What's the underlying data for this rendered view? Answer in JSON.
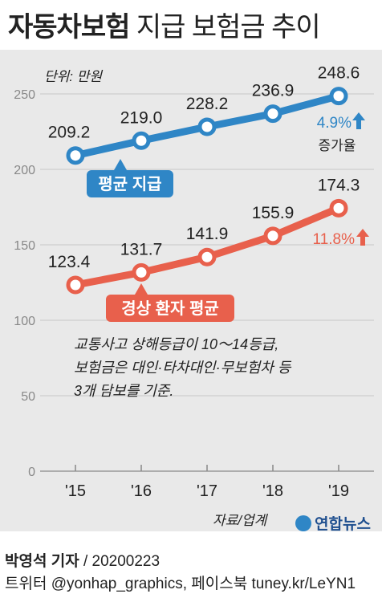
{
  "header": {
    "title_bold": "자동차보험",
    "title_rest": "지급 보험금 추이"
  },
  "unit_label": "단위: 만원",
  "chart_data": {
    "type": "line",
    "categories": [
      "'15",
      "'16",
      "'17",
      "'18",
      "'19"
    ],
    "ylim": [
      0,
      250
    ],
    "yticks": [
      "0",
      "50",
      "100",
      "150",
      "200",
      "250"
    ],
    "grid": true,
    "series": [
      {
        "name": "평균 지급",
        "color": "#2f86c6",
        "values": [
          209.2,
          219.0,
          228.2,
          236.9,
          248.6
        ],
        "labels": [
          "209.2",
          "219.0",
          "228.2",
          "236.9",
          "248.6"
        ],
        "growth": "4.9%"
      },
      {
        "name": "경상 환자 평균",
        "color": "#e8604c",
        "values": [
          123.4,
          131.7,
          141.9,
          155.9,
          174.3
        ],
        "labels": [
          "123.4",
          "131.7",
          "141.9",
          "155.9",
          "174.3"
        ],
        "growth": "11.8%"
      }
    ],
    "growth_caption": "증가율",
    "note_lines": [
      "교통사고 상해등급이 10～14등급,",
      "보험금은 대인·타차대인·무보험차 등",
      "3개 담보를 기준."
    ]
  },
  "source": "자료/업계",
  "logo_text": "연합뉴스",
  "footer": {
    "author": "박영석 기자",
    "date": "/  20200223",
    "social": "트위터 @yonhap_graphics, 페이스북 tuney.kr/LeYN1"
  }
}
